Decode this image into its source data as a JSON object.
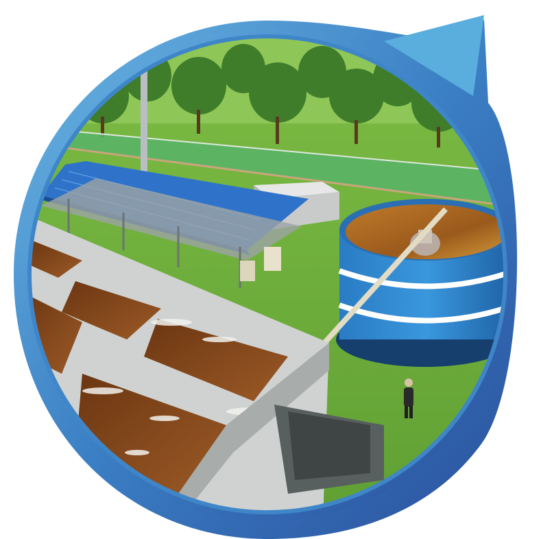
{
  "illustration": {
    "subject": "",
    "badge_shape": "circle-with-pointer-tail",
    "colors": {
      "ring_outer": "#2f63ad",
      "ring_inner": "#5aa6d8",
      "grass": "#6cae3c",
      "grass_light": "#8cc553",
      "fence": "#4cae5e",
      "water": "#8a4a1e",
      "water_light": "#b06a2c",
      "concrete": "#d7d9d8",
      "roof": "#2e73c9",
      "tank": "#2f86cf",
      "tree": "#3d7a2a",
      "background": "#ffffff"
    }
  }
}
